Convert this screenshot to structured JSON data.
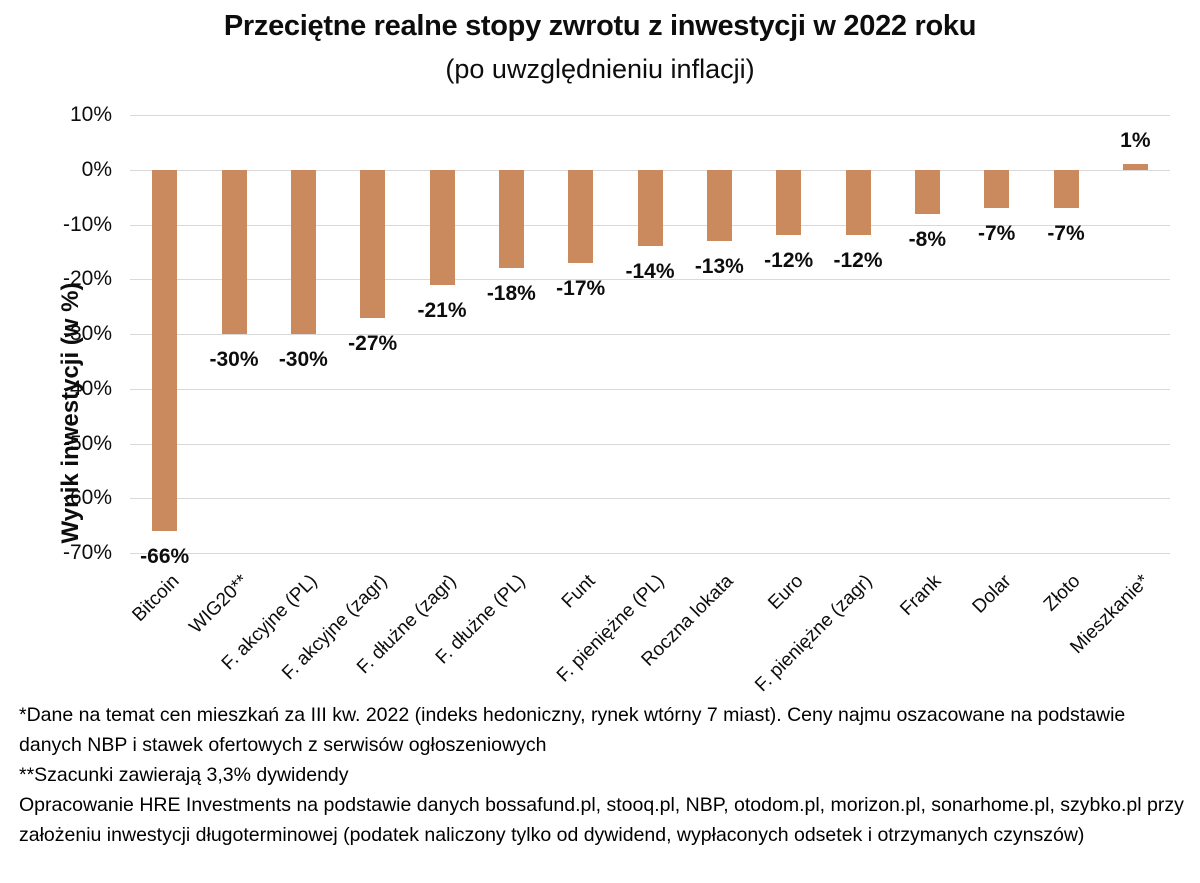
{
  "header": {
    "title": "Przeciętne realne stopy zwrotu z inwestycji w 2022 roku",
    "subtitle": "(po uwzględnieniu inflacji)"
  },
  "chart_data": {
    "type": "bar",
    "title": "Przeciętne realne stopy zwrotu z inwestycji w 2022 roku",
    "subtitle": "(po uwzględnieniu inflacji)",
    "categories": [
      "Bitcoin",
      "WIG20**",
      "F. akcyjne (PL)",
      "F. akcyjne (zagr)",
      "F. dłużne (zagr)",
      "F. dłużne (PL)",
      "Funt",
      "F. pieniężne (PL)",
      "Roczna lokata",
      "Euro",
      "F. pieniężne (zagr)",
      "Frank",
      "Dolar",
      "Złoto",
      "Mieszkanie*"
    ],
    "values": [
      -66,
      -30,
      -30,
      -27,
      -21,
      -18,
      -17,
      -14,
      -13,
      -12,
      -12,
      -8,
      -7,
      -7,
      1
    ],
    "value_labels": [
      "-66%",
      "-30%",
      "-30%",
      "-27%",
      "-21%",
      "-18%",
      "-17%",
      "-14%",
      "-13%",
      "-12%",
      "-12%",
      "-8%",
      "-7%",
      "-7%",
      "1%"
    ],
    "xlabel": "",
    "ylabel": "Wynik inwestycji (w %)",
    "ylim": [
      -70,
      10
    ],
    "ytick_step": 10,
    "ytick_labels": [
      "10%",
      "0%",
      "-10%",
      "-20%",
      "-30%",
      "-40%",
      "-50%",
      "-60%",
      "-70%"
    ],
    "grid": true,
    "legend": "none",
    "bar_color": "#CB8A5E",
    "gridline_color": "#D9D9D9",
    "text_color": "#0d0d0d"
  },
  "footnotes": {
    "line1": "*Dane na temat cen mieszkań za III kw. 2022 (indeks hedoniczny, rynek wtórny 7 miast). Ceny najmu oszacowane na podstawie danych NBP i stawek ofertowych z serwisów ogłoszeniowych",
    "line2": "**Szacunki zawierają 3,3% dywidendy",
    "line3": "Opracowanie HRE Investments na podstawie danych bossafund.pl, stooq.pl, NBP, otodom.pl, morizon.pl, sonarhome.pl, szybko.pl przy założeniu inwestycji długoterminowej (podatek naliczony tylko od dywidend, wypłaconych odsetek i otrzymanych czynszów)"
  }
}
